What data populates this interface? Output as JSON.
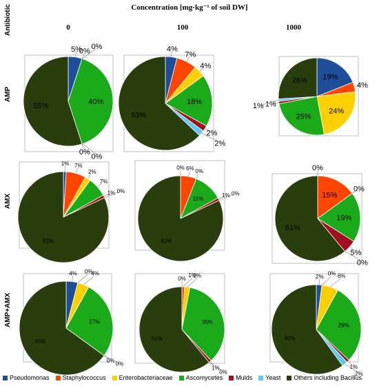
{
  "title": "Concentration [mg·kg⁻¹ of soil DW]",
  "row_header": "Antibiotic",
  "colors": {
    "Pseudomonas": "#1f4e99",
    "Staphylococcus": "#ff4500",
    "Enterobacteriaceae": "#ffd000",
    "Ascomycetes": "#1aaa1a",
    "Mulds": "#a0101e",
    "Yeast": "#5bc8f5",
    "Others including Bacillus": "#2a3d0c"
  },
  "chart_data": {
    "type": "pie",
    "title": "Concentration [mg·kg⁻¹ of soil DW]",
    "column_labels": [
      "0",
      "100",
      "1000"
    ],
    "row_labels": [
      "AMP",
      "AMX",
      "AMP+AMX"
    ],
    "categories": [
      "Pseudomonas",
      "Staphylococcus",
      "Enterobacteriaceae",
      "Ascomycetes",
      "Mulds",
      "Yeast",
      "Others including Bacillus"
    ],
    "pies": [
      {
        "row": "AMP",
        "column": "0",
        "values": [
          5,
          0,
          0,
          40,
          0,
          0,
          55
        ],
        "labels": [
          "5%",
          "0%",
          "0%",
          "40%",
          "0%",
          "0%",
          "55%"
        ]
      },
      {
        "row": "AMP",
        "column": "100",
        "values": [
          4,
          7,
          4,
          18,
          2,
          2,
          63
        ],
        "labels": [
          "4%",
          "7%",
          "4%",
          "18%",
          "2%",
          "2%",
          "63%"
        ]
      },
      {
        "row": "AMP",
        "column": "1000",
        "values": [
          19,
          4,
          24,
          25,
          1,
          1,
          26
        ],
        "labels": [
          "19%",
          "4%",
          "24%",
          "25%",
          "1%",
          "1%",
          "26%"
        ]
      },
      {
        "row": "AMX",
        "column": "0",
        "values": [
          1,
          7,
          2,
          7,
          1,
          0,
          82
        ],
        "labels": [
          "1%",
          "7%",
          "2%",
          "7%",
          "1%",
          "0%",
          "82%"
        ]
      },
      {
        "row": "AMX",
        "column": "100",
        "values": [
          0,
          6,
          0,
          11,
          1,
          0,
          82
        ],
        "labels": [
          "0%",
          "6%",
          "0%",
          "11%",
          "1%",
          "0%",
          "82%"
        ]
      },
      {
        "row": "AMX",
        "column": "1000",
        "values": [
          0,
          15,
          0,
          19,
          5,
          0,
          61
        ],
        "labels": [
          "0%",
          "15%",
          "0%",
          "19%",
          "5%",
          "0%",
          "61%"
        ]
      },
      {
        "row": "AMP+AMX",
        "column": "0",
        "values": [
          4,
          0,
          4,
          27,
          0,
          0,
          65
        ],
        "labels": [
          "4%",
          "0%",
          "4%",
          "27%",
          "0%",
          "0%",
          "65%"
        ]
      },
      {
        "row": "AMP+AMX",
        "column": "100",
        "values": [
          0,
          1,
          2,
          35,
          1,
          0,
          61
        ],
        "labels": [
          "0%",
          "1%",
          "2%",
          "35%",
          "1%",
          "0%",
          "61%"
        ]
      },
      {
        "row": "AMP+AMX",
        "column": "1000",
        "values": [
          2,
          0,
          6,
          29,
          1,
          2,
          60
        ],
        "labels": [
          "2%",
          "0%",
          "6%",
          "29%",
          "1%",
          "2%",
          "60%"
        ]
      }
    ],
    "legend": {
      "position": "bottom",
      "entries": [
        "Pseudomonas",
        "Staphylococcus",
        "Enterobacteriaceae",
        "Ascomycetes",
        "Mulds",
        "Yeast",
        "Others including Bacillus"
      ]
    }
  }
}
